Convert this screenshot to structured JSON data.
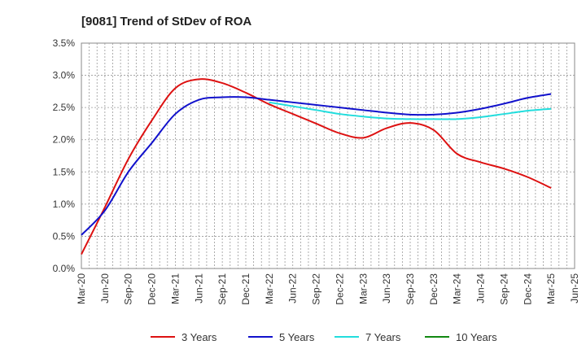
{
  "chart_data": {
    "type": "line",
    "title": "[9081]  Trend of StDev of ROA",
    "xlabel": "",
    "ylabel": "",
    "x_ticks": [
      "Mar-20",
      "Jun-20",
      "Sep-20",
      "Dec-20",
      "Mar-21",
      "Jun-21",
      "Sep-21",
      "Dec-21",
      "Mar-22",
      "Jun-22",
      "Sep-22",
      "Dec-22",
      "Mar-23",
      "Jun-23",
      "Sep-23",
      "Dec-23",
      "Mar-24",
      "Jun-24",
      "Sep-24",
      "Dec-24",
      "Mar-25",
      "Jun-25"
    ],
    "y_ticks": [
      "0.0%",
      "0.5%",
      "1.0%",
      "1.5%",
      "2.0%",
      "2.5%",
      "3.0%",
      "3.5%"
    ],
    "ylim": [
      0,
      3.5
    ],
    "grid": true,
    "legend_position": "bottom",
    "x": [
      "Mar-20",
      "Jun-20",
      "Sep-20",
      "Dec-20",
      "Mar-21",
      "Jun-21",
      "Sep-21",
      "Dec-21",
      "Mar-22",
      "Jun-22",
      "Sep-22",
      "Dec-22",
      "Mar-23",
      "Jun-23",
      "Sep-23",
      "Dec-23",
      "Mar-24",
      "Jun-24",
      "Sep-24",
      "Dec-24",
      "Mar-25"
    ],
    "series": [
      {
        "name": "3 Years",
        "color": "#dd1111",
        "values": [
          0.22,
          0.95,
          1.7,
          2.3,
          2.8,
          2.94,
          2.88,
          2.73,
          2.55,
          2.4,
          2.25,
          2.1,
          2.03,
          2.18,
          2.26,
          2.15,
          1.78,
          1.65,
          1.55,
          1.42,
          1.25
        ]
      },
      {
        "name": "5 Years",
        "color": "#1111cc",
        "values": [
          0.52,
          0.9,
          1.5,
          1.95,
          2.4,
          2.62,
          2.66,
          2.66,
          2.62,
          2.58,
          2.54,
          2.5,
          2.46,
          2.42,
          2.39,
          2.39,
          2.42,
          2.48,
          2.56,
          2.65,
          2.71
        ]
      },
      {
        "name": "7 Years",
        "color": "#22dddd",
        "values": [
          null,
          null,
          null,
          null,
          null,
          null,
          null,
          null,
          2.58,
          2.52,
          2.46,
          2.4,
          2.36,
          2.33,
          2.32,
          2.32,
          2.32,
          2.35,
          2.4,
          2.45,
          2.48
        ]
      },
      {
        "name": "10 Years",
        "color": "#118811",
        "values": [
          null,
          null,
          null,
          null,
          null,
          null,
          null,
          null,
          null,
          null,
          null,
          null,
          null,
          null,
          null,
          null,
          null,
          null,
          null,
          null,
          null
        ]
      }
    ]
  }
}
